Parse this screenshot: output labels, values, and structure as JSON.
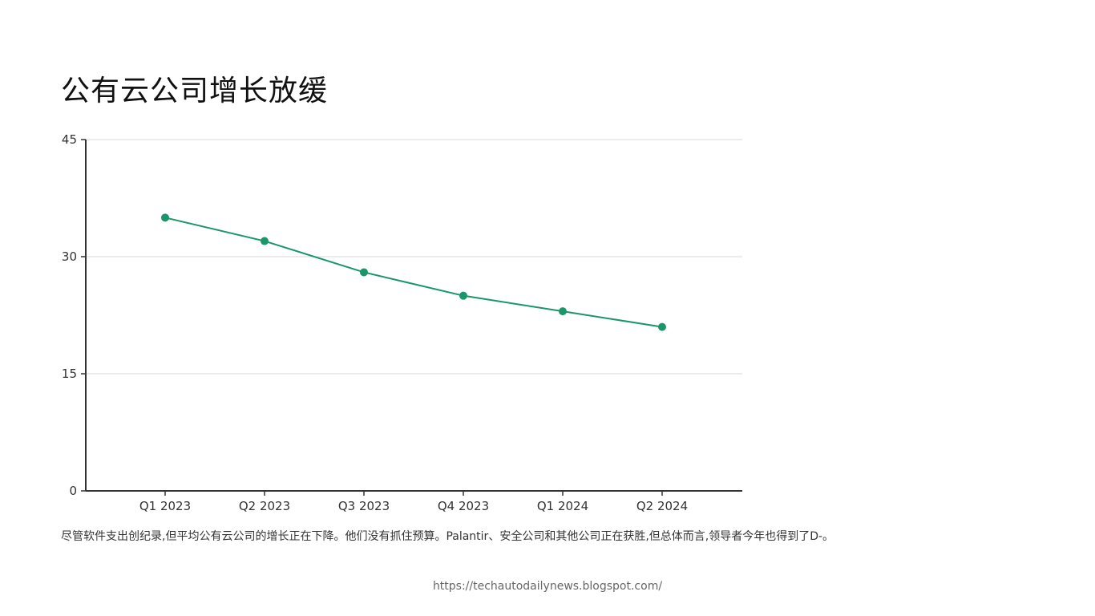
{
  "page": {
    "title": "公有云公司增长放缓",
    "caption": "尽管软件支出创纪录,但平均公有云公司的增长正在下降。他们没有抓住预算。Palantir、安全公司和其他公司正在获胜,但总体而言,领导者今年也得到了D-。",
    "source": "https://techautodailynews.blogspot.com/"
  },
  "chart_data": {
    "type": "line",
    "title": "公有云公司增长放缓",
    "xlabel": "",
    "ylabel": "",
    "categories": [
      "Q1 2023",
      "Q2 2023",
      "Q3 2023",
      "Q4 2023",
      "Q1 2024",
      "Q2 2024"
    ],
    "series": [
      {
        "values": [
          35,
          32,
          28,
          25,
          23,
          21
        ]
      }
    ],
    "ylim": [
      0,
      45
    ],
    "yticks": [
      0,
      15,
      30,
      45
    ],
    "grid": true,
    "legend": "none",
    "colors": {
      "line": "#1b9668",
      "grid": "#d9d9d9",
      "axis": "#333333"
    }
  }
}
